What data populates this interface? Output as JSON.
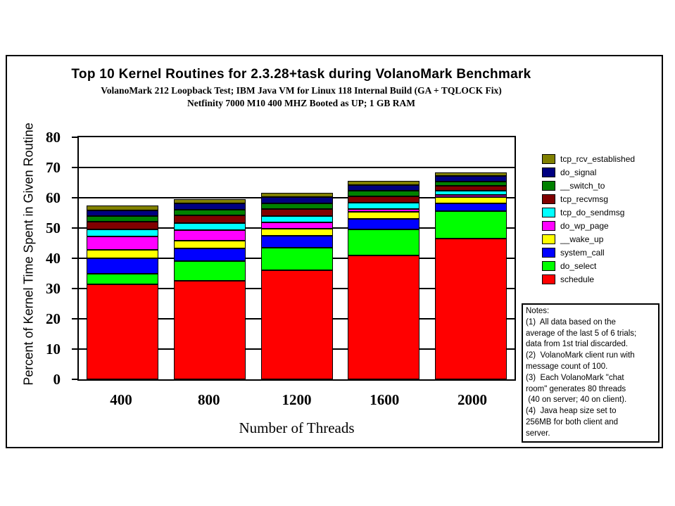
{
  "chart_data": {
    "type": "bar",
    "stacked": true,
    "title": "Top 10 Kernel Routines for 2.3.28+task during VolanoMark Benchmark",
    "subtitle1": "VolanoMark 212 Loopback Test; IBM Java VM for Linux 118 Internal Build (GA + TQLOCK Fix)",
    "subtitle2": "Netfinity 7000 M10 400 MHZ Booted as UP; 1 GB RAM",
    "xlabel": "Number of Threads",
    "ylabel": "Percent of Kernel Time Spent in Given Routine",
    "categories": [
      "400",
      "800",
      "1200",
      "1600",
      "2000"
    ],
    "ylim": [
      0,
      80
    ],
    "yticks": [
      0,
      10,
      20,
      30,
      40,
      50,
      60,
      70,
      80
    ],
    "grid": true,
    "legend_position": "right",
    "series": [
      {
        "name": "schedule",
        "color": "#FF0000",
        "values": [
          31.4,
          32.5,
          36.0,
          41.0,
          46.5
        ]
      },
      {
        "name": "do_select",
        "color": "#00FF00",
        "values": [
          3.5,
          6.5,
          7.5,
          8.6,
          9.0
        ]
      },
      {
        "name": "system_call",
        "color": "#0000FF",
        "values": [
          5.2,
          4.2,
          3.9,
          3.6,
          2.5
        ]
      },
      {
        "name": "__wake_up",
        "color": "#FFFF00",
        "values": [
          2.8,
          2.6,
          2.4,
          2.3,
          2.0
        ]
      },
      {
        "name": "do_wp_page",
        "color": "#FF00FF",
        "values": [
          4.4,
          3.5,
          2.1,
          1.0,
          0.7
        ]
      },
      {
        "name": "tcp_do_sendmsg",
        "color": "#00FFFF",
        "values": [
          2.3,
          2.4,
          2.1,
          2.0,
          1.5
        ]
      },
      {
        "name": "tcp_recvmsg",
        "color": "#800000",
        "values": [
          2.6,
          2.5,
          2.4,
          2.0,
          1.7
        ]
      },
      {
        "name": "__switch_to",
        "color": "#008000",
        "values": [
          1.8,
          1.8,
          1.9,
          1.8,
          1.5
        ]
      },
      {
        "name": "do_signal",
        "color": "#000080",
        "values": [
          1.9,
          2.0,
          2.0,
          1.9,
          1.8
        ]
      },
      {
        "name": "tcp_rcv_established",
        "color": "#808000",
        "values": [
          1.6,
          1.5,
          1.5,
          1.5,
          1.1
        ]
      }
    ]
  },
  "notes": {
    "text": "Notes:\n(1)  All data based on the\naverage of the last 5 of 6 trials;\ndata from 1st trial discarded.\n(2)  VolanoMark client run with\nmessage count of 100.\n(3)  Each VolanoMark \"chat\nroom\" generates 80 threads\n (40 on server; 40 on client).\n(4)  Java heap size set to\n256MB for both client and\nserver."
  }
}
